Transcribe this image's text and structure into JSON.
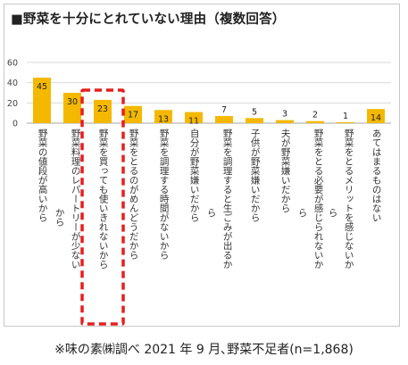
{
  "chart_data": {
    "type": "bar",
    "title": "■野菜を十分にとれていない理由（複数回答）",
    "ylim": [
      0,
      60
    ],
    "yticks": [
      0,
      20,
      40,
      60
    ],
    "grid": true,
    "bar_color": "#f5b800",
    "highlight_color": "#e61e1e",
    "highlight_index": 2,
    "categories": [
      [
        "野菜の値段が高いから"
      ],
      [
        "野菜料理のレパートリーが少ない",
        "から"
      ],
      [
        "野菜を買っても使いきれないから"
      ],
      [
        "野菜をとるのがめんどうだから"
      ],
      [
        "野菜を調理する時間がないから"
      ],
      [
        "自分が野菜嫌いだから"
      ],
      [
        "野菜を調理すると生ごみが出るか",
        "ら"
      ],
      [
        "子供が野菜嫌いだから"
      ],
      [
        "夫が野菜嫌いだから"
      ],
      [
        "野菜をとる必要が感じられないか",
        "ら"
      ],
      [
        "野菜をとるメリットを感じないか",
        "ら"
      ],
      [
        "あてはまるものはない"
      ]
    ],
    "values": [
      45,
      30,
      23,
      17,
      13,
      11,
      7,
      5,
      3,
      2,
      1,
      14
    ]
  },
  "source": "※味の素㈱調べ 2021 年 9 月､野菜不足者(n=1,868)"
}
